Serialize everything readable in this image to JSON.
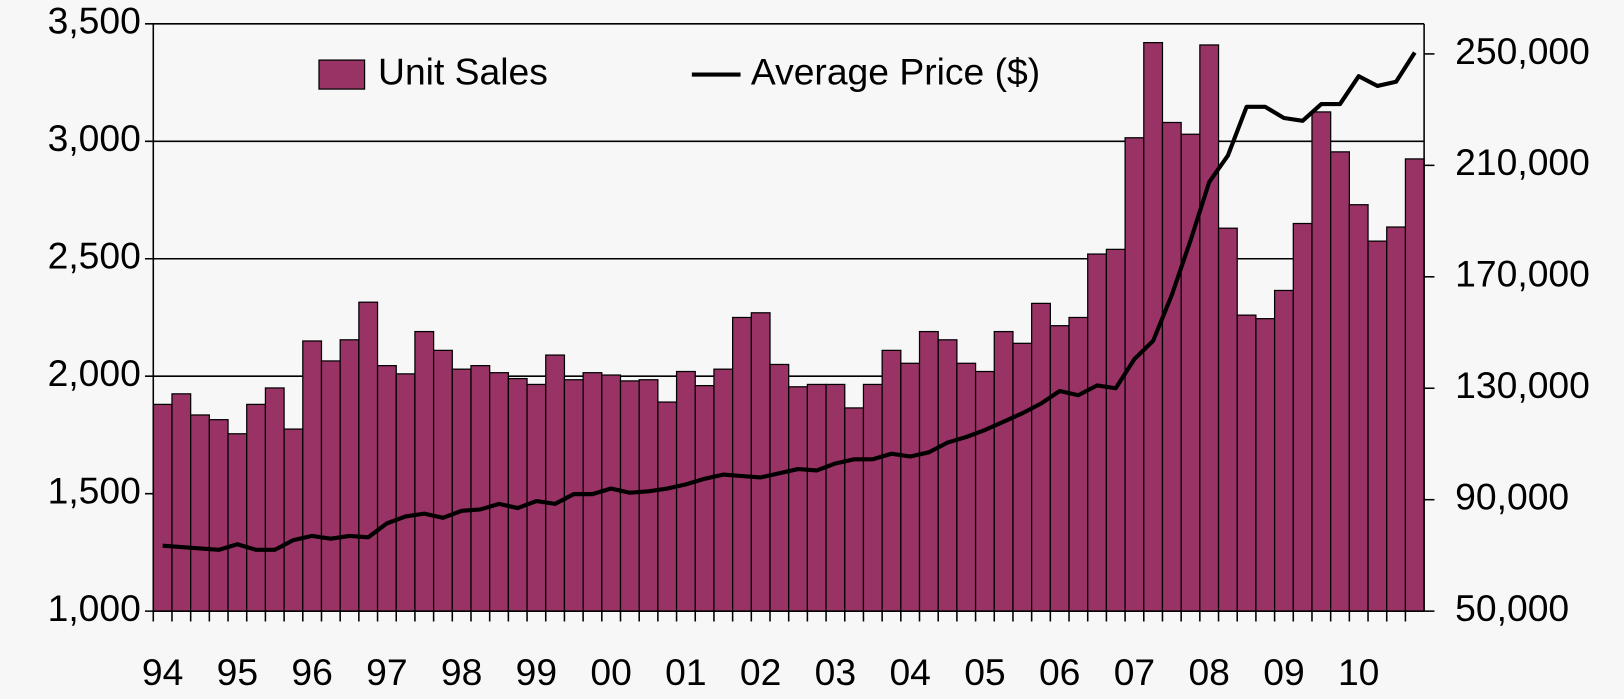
{
  "chart_data": {
    "type": "combo",
    "categories": [
      "94",
      null,
      null,
      null,
      "95",
      null,
      null,
      null,
      "96",
      null,
      null,
      null,
      "97",
      null,
      null,
      null,
      "98",
      null,
      null,
      null,
      "99",
      null,
      null,
      null,
      "00",
      null,
      null,
      null,
      "01",
      null,
      null,
      null,
      "02",
      null,
      null,
      null,
      "03",
      null,
      null,
      null,
      "04",
      null,
      null,
      null,
      "05",
      null,
      null,
      null,
      "06",
      null,
      null,
      null,
      "07",
      null,
      null,
      null,
      "08",
      null,
      null,
      null,
      "09",
      null,
      null,
      null,
      "10",
      null,
      null,
      null
    ],
    "series": [
      {
        "name": "Unit Sales",
        "type": "bar",
        "color": "#993366",
        "values": [
          1880,
          1925,
          1835,
          1815,
          1755,
          1880,
          1950,
          1775,
          2150,
          2065,
          2155,
          2315,
          2045,
          2010,
          2190,
          2110,
          2030,
          2045,
          2015,
          1990,
          1965,
          2090,
          1985,
          2015,
          2005,
          1980,
          1985,
          1890,
          2020,
          1960,
          2030,
          2250,
          2270,
          2050,
          1955,
          1965,
          1965,
          1865,
          1965,
          2110,
          2055,
          2190,
          2155,
          2055,
          2020,
          2190,
          2140,
          2310,
          2215,
          2250,
          2520,
          2540,
          3015,
          3420,
          3080,
          3030,
          3410,
          2630,
          2260,
          2245,
          2365,
          2650,
          3125,
          2955,
          2730,
          2575,
          2635,
          2925
        ]
      },
      {
        "name": "Average Price ($)",
        "type": "line",
        "axis": "y2",
        "color": "#000000",
        "values": [
          73500,
          73000,
          72500,
          72000,
          74000,
          72000,
          72000,
          75500,
          77000,
          76000,
          77000,
          76500,
          81500,
          84000,
          85000,
          83500,
          86000,
          86500,
          88500,
          87000,
          89500,
          88500,
          92000,
          92000,
          94000,
          92500,
          93000,
          94000,
          95500,
          97500,
          99000,
          98500,
          98000,
          99500,
          101000,
          100500,
          103000,
          104500,
          104500,
          106500,
          105500,
          107000,
          110500,
          112500,
          115000,
          118000,
          121000,
          124500,
          129000,
          127500,
          131000,
          130000,
          140500,
          147000,
          163500,
          183000,
          204000,
          213500,
          231000,
          231000,
          227000,
          226000,
          232000,
          232000,
          242000,
          238500,
          240000,
          250500
        ]
      }
    ],
    "ylim": [
      1000,
      3500
    ],
    "yticks": [
      {
        "value": 1000,
        "label": "1,000"
      },
      {
        "value": 1500,
        "label": "1,500"
      },
      {
        "value": 2000,
        "label": "2,000"
      },
      {
        "value": 2500,
        "label": "2,500"
      },
      {
        "value": 3000,
        "label": "3,000"
      },
      {
        "value": 3500,
        "label": "3,500"
      }
    ],
    "y2lim": [
      50000,
      260800
    ],
    "y2ticks": [
      {
        "value": 50000,
        "label": "50,000"
      },
      {
        "value": 90000,
        "label": "90,000"
      },
      {
        "value": 130000,
        "label": "130,000"
      },
      {
        "value": 170000,
        "label": "170,000"
      },
      {
        "value": 210000,
        "label": "210,000"
      },
      {
        "value": 250000,
        "label": "250,000"
      }
    ],
    "grid": true,
    "legend": "top"
  }
}
